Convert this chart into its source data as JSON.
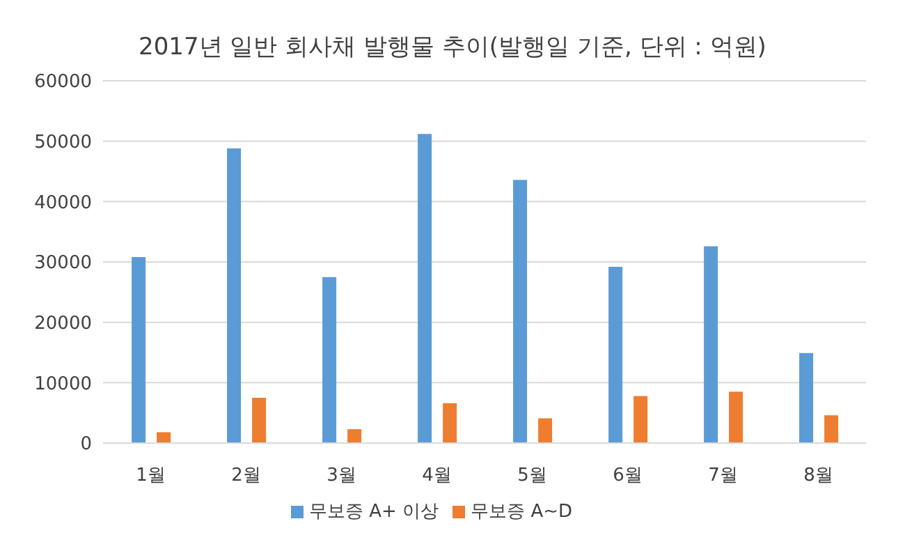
{
  "chart_data": {
    "type": "bar",
    "title": "2017년 일반 회사채 발행물 추이(발행일 기준, 단위 : 억원)",
    "categories": [
      "1월",
      "2월",
      "3월",
      "4월",
      "5월",
      "6월",
      "7월",
      "8월"
    ],
    "series": [
      {
        "name": "무보증 A+ 이상",
        "color": "#5b9bd5",
        "values": [
          30800,
          48800,
          27500,
          51200,
          43600,
          29200,
          32600,
          14900
        ]
      },
      {
        "name": "무보증 A~D",
        "color": "#ed7d31",
        "values": [
          1800,
          7500,
          2300,
          6600,
          4100,
          7800,
          8500,
          4600
        ]
      }
    ],
    "ylim": [
      0,
      60000
    ],
    "yticks": [
      0,
      10000,
      20000,
      30000,
      40000,
      50000,
      60000
    ],
    "grid": "y",
    "legend": "bottom"
  }
}
